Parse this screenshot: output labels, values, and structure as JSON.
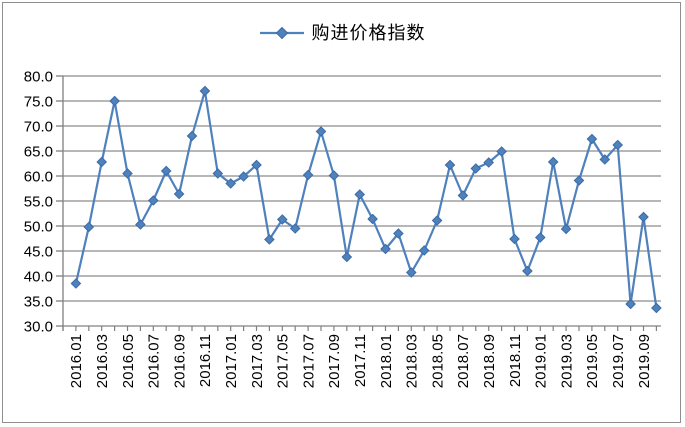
{
  "chart_data": {
    "type": "line",
    "title": "",
    "legend_position": "top-center",
    "grid": "horizontal",
    "ylim": [
      30,
      80
    ],
    "ytick_step": 5,
    "ytick_labels": [
      "80.0",
      "75.0",
      "70.0",
      "65.0",
      "60.0",
      "55.0",
      "50.0",
      "45.0",
      "40.0",
      "35.0",
      "30.0"
    ],
    "xtick_labels": [
      "2016.01",
      "2016.03",
      "2016.05",
      "2016.07",
      "2016.09",
      "2016.11",
      "2017.01",
      "2017.03",
      "2017.05",
      "2017.07",
      "2017.09",
      "2017.11",
      "2018.01",
      "2018.03",
      "2018.05",
      "2018.07",
      "2018.09",
      "2018.11",
      "2019.01",
      "2019.03",
      "2019.05",
      "2019.07",
      "2019.09"
    ],
    "xtick_every": 2,
    "x": [
      "2016.01",
      "2016.02",
      "2016.03",
      "2016.04",
      "2016.05",
      "2016.06",
      "2016.07",
      "2016.08",
      "2016.09",
      "2016.10",
      "2016.11",
      "2016.12",
      "2017.01",
      "2017.02",
      "2017.03",
      "2017.04",
      "2017.05",
      "2017.06",
      "2017.07",
      "2017.08",
      "2017.09",
      "2017.10",
      "2017.11",
      "2017.12",
      "2018.01",
      "2018.02",
      "2018.03",
      "2018.04",
      "2018.05",
      "2018.06",
      "2018.07",
      "2018.08",
      "2018.09",
      "2018.10",
      "2018.11",
      "2018.12",
      "2019.01",
      "2019.02",
      "2019.03",
      "2019.04",
      "2019.05",
      "2019.06",
      "2019.07",
      "2019.08",
      "2019.09",
      "2019.10"
    ],
    "series": [
      {
        "name": "购进价格指数",
        "marker": "diamond",
        "color": "#4F81BD",
        "marker_border_color": "#3A6BA5",
        "values": [
          38.5,
          49.8,
          62.8,
          75.0,
          60.5,
          50.3,
          55.1,
          61.0,
          56.4,
          68.0,
          77.0,
          60.5,
          58.5,
          59.9,
          62.2,
          47.3,
          51.3,
          49.5,
          60.2,
          68.9,
          60.1,
          43.8,
          56.3,
          51.4,
          45.4,
          48.5,
          40.7,
          45.1,
          51.1,
          62.2,
          56.1,
          61.5,
          62.7,
          64.9,
          47.4,
          41.0,
          47.7,
          62.8,
          49.4,
          59.1,
          67.4,
          63.3,
          66.2,
          34.4,
          51.8,
          33.6
        ]
      }
    ],
    "colors": {
      "gridline": "#8c8c8c",
      "axis": "#808080",
      "text": "#000000",
      "frame_border": "#8f8f8f"
    }
  }
}
